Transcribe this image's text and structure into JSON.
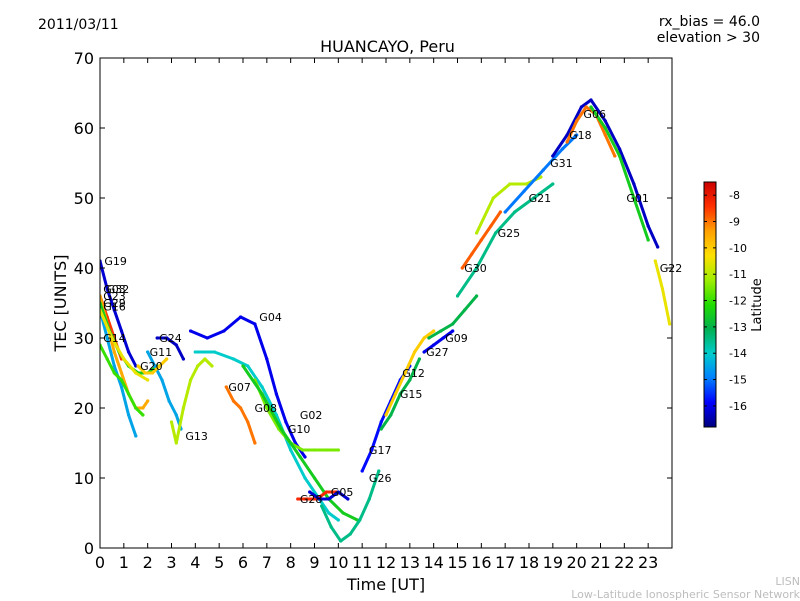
{
  "header": {
    "date": "2011/03/11",
    "bias_line": "rx_bias = 46.0",
    "elevation_line": "elevation > 30",
    "title": "HUANCAYO, Peru"
  },
  "footer": {
    "line1": "LISN",
    "line2": "Low-Latitude Ionospheric Sensor Network"
  },
  "chart_data": {
    "type": "scatter",
    "title": "HUANCAYO, Peru",
    "xlabel": "Time [UT]",
    "ylabel": "TEC [UNITS]",
    "xlim": [
      0,
      24
    ],
    "ylim": [
      0,
      70
    ],
    "xticks": [
      0,
      1,
      2,
      3,
      4,
      5,
      6,
      7,
      8,
      9,
      10,
      11,
      12,
      13,
      14,
      15,
      16,
      17,
      18,
      19,
      20,
      21,
      22,
      23
    ],
    "yticks": [
      0,
      10,
      20,
      30,
      40,
      50,
      60,
      70
    ],
    "colorbar": {
      "label": "Latitude",
      "min": -16.8,
      "max": -7.5,
      "ticks": [
        -8,
        -9,
        -10,
        -11,
        -12,
        -13,
        -14,
        -15,
        -16
      ],
      "colors": [
        "#00007f",
        "#0000ff",
        "#0080ff",
        "#00cccc",
        "#00b050",
        "#22dd00",
        "#a0ee00",
        "#ffe000",
        "#ffa000",
        "#ff3000",
        "#cc0000"
      ]
    },
    "series": [
      {
        "name": "G19",
        "label_at": [
          0.1,
          41
        ],
        "lat": -16.2,
        "x": [
          0,
          0.3,
          0.6,
          0.9,
          1.2,
          1.5
        ],
        "y": [
          41,
          37,
          34,
          31,
          28,
          26
        ]
      },
      {
        "name": "G03",
        "label_at": [
          0.05,
          37
        ],
        "lat": -8.5,
        "x": [
          0,
          0.3,
          0.6,
          0.9
        ],
        "y": [
          36,
          33,
          30,
          27
        ]
      },
      {
        "name": "G32",
        "label_at": [
          0.2,
          37
        ],
        "lat": -9.5,
        "x": [
          0,
          0.3,
          0.6,
          0.9,
          1.2,
          1.5,
          1.8,
          2.0
        ],
        "y": [
          36,
          32,
          28,
          25,
          22,
          20,
          20,
          21
        ]
      },
      {
        "name": "G23",
        "label_at": [
          0.05,
          36
        ],
        "lat": -12.5,
        "x": [
          0,
          0.4,
          0.8,
          1.2,
          1.6,
          2.0,
          2.4
        ],
        "y": [
          35,
          31,
          28,
          26,
          25,
          25,
          26
        ]
      },
      {
        "name": "G29",
        "label_at": [
          0.05,
          35
        ],
        "lat": -14.5,
        "x": [
          0,
          0.3,
          0.6,
          0.9,
          1.2,
          1.5
        ],
        "y": [
          34,
          30,
          26,
          23,
          19,
          16
        ]
      },
      {
        "name": "G16",
        "label_at": [
          0.05,
          34.5
        ],
        "lat": -10.5,
        "x": [
          0,
          0.5,
          1.0,
          1.5,
          2.0
        ],
        "y": [
          34,
          30,
          27,
          25,
          24
        ]
      },
      {
        "name": "G14",
        "label_at": [
          0.05,
          30
        ],
        "lat": -12.0,
        "x": [
          0,
          0.3,
          0.6,
          0.9,
          1.2,
          1.5,
          1.8
        ],
        "y": [
          29,
          27,
          25,
          24,
          22,
          20,
          19
        ]
      },
      {
        "name": "G24",
        "label_at": [
          2.4,
          30
        ],
        "lat": -16.3,
        "x": [
          2.4,
          2.8,
          3.2,
          3.5
        ],
        "y": [
          30,
          30,
          29,
          27
        ]
      },
      {
        "name": "G11",
        "label_at": [
          2.0,
          28
        ],
        "lat": -14.5,
        "x": [
          2.0,
          2.3,
          2.6,
          2.9,
          3.2,
          3.4
        ],
        "y": [
          28,
          26,
          24,
          21,
          19,
          17
        ]
      },
      {
        "name": "G13",
        "label_at": [
          3.5,
          16
        ],
        "lat": -11.0,
        "x": [
          3.0,
          3.2,
          3.5,
          3.8,
          4.1,
          4.4,
          4.7
        ],
        "y": [
          18,
          15,
          20,
          24,
          26,
          27,
          26
        ]
      },
      {
        "name": "G20",
        "label_at": [
          1.6,
          26
        ],
        "lat": -10.0,
        "x": [
          1.6,
          1.9,
          2.2,
          2.5,
          2.8
        ],
        "y": [
          26,
          25,
          25,
          26,
          27
        ]
      },
      {
        "name": "G07",
        "label_at": [
          5.3,
          23
        ],
        "lat": -9.0,
        "x": [
          5.3,
          5.6,
          5.9,
          6.2,
          6.5
        ],
        "y": [
          23,
          21,
          20,
          18,
          15
        ]
      },
      {
        "name": "G04",
        "label_at": [
          6.6,
          33
        ],
        "lat": -16.0,
        "x": [
          3.8,
          4.5,
          5.2,
          5.9,
          6.5,
          7.0,
          7.4,
          7.8,
          8.2,
          8.6
        ],
        "y": [
          31,
          30,
          31,
          33,
          32,
          27,
          22,
          18,
          15,
          13
        ]
      },
      {
        "name": "G08",
        "label_at": [
          6.4,
          20
        ],
        "lat": -14.0,
        "x": [
          4.0,
          4.8,
          5.6,
          6.2,
          6.8,
          7.4,
          8.0,
          8.6,
          9.2,
          9.6,
          10.0
        ],
        "y": [
          28,
          28,
          27,
          26,
          23,
          19,
          14,
          10,
          7,
          5,
          4
        ]
      },
      {
        "name": "G02",
        "label_at": [
          8.3,
          19
        ],
        "lat": -11.5,
        "x": [
          6.5,
          7.0,
          7.5,
          8.0,
          8.5,
          9.0,
          9.5,
          10.0
        ],
        "y": [
          24,
          20,
          17,
          15,
          14,
          14,
          14,
          14
        ]
      },
      {
        "name": "G10",
        "label_at": [
          7.8,
          17
        ],
        "lat": -12.5,
        "x": [
          6.0,
          6.8,
          7.6,
          8.4,
          9.0,
          9.6,
          10.2,
          10.8
        ],
        "y": [
          26,
          22,
          17,
          13,
          10,
          7,
          5,
          4
        ]
      },
      {
        "name": "G28",
        "label_at": [
          8.3,
          7
        ],
        "lat": -8.3,
        "x": [
          8.3,
          8.7,
          9.1,
          9.5,
          9.9
        ],
        "y": [
          7,
          7,
          7,
          8,
          8
        ]
      },
      {
        "name": "G05",
        "label_at": [
          9.6,
          8
        ],
        "lat": -16.2,
        "x": [
          8.8,
          9.2,
          9.6,
          10.0,
          10.4
        ],
        "y": [
          8,
          7,
          7,
          8,
          7
        ]
      },
      {
        "name": "G26",
        "label_at": [
          11.2,
          10
        ],
        "lat": -13.5,
        "x": [
          9.3,
          9.7,
          10.1,
          10.5,
          10.9,
          11.3,
          11.7
        ],
        "y": [
          6,
          3,
          1,
          2,
          4,
          7,
          11
        ]
      },
      {
        "name": "G17",
        "label_at": [
          11.2,
          14
        ],
        "lat": -15.8,
        "x": [
          11.0,
          11.4,
          11.8,
          12.2,
          12.6,
          13.0
        ],
        "y": [
          11,
          14,
          18,
          21,
          24,
          26
        ]
      },
      {
        "name": "G12",
        "label_at": [
          12.6,
          25
        ],
        "lat": -10.0,
        "x": [
          12.0,
          12.4,
          12.8,
          13.2,
          13.6,
          14.0
        ],
        "y": [
          19,
          22,
          25,
          28,
          30,
          31
        ]
      },
      {
        "name": "G15",
        "label_at": [
          12.5,
          22
        ],
        "lat": -13.0,
        "x": [
          11.8,
          12.2,
          12.6,
          13.0,
          13.4
        ],
        "y": [
          17,
          19,
          22,
          24,
          27
        ]
      },
      {
        "name": "G27",
        "label_at": [
          13.6,
          28
        ],
        "lat": -16.0,
        "x": [
          13.6,
          14.0,
          14.4,
          14.8
        ],
        "y": [
          28,
          29,
          30,
          31
        ]
      },
      {
        "name": "G09",
        "label_at": [
          14.4,
          30
        ],
        "lat": -13.0,
        "x": [
          13.8,
          14.3,
          14.8,
          15.3,
          15.8
        ],
        "y": [
          30,
          31,
          32,
          34,
          36
        ]
      },
      {
        "name": "G30",
        "label_at": [
          15.2,
          40
        ],
        "lat": -8.8,
        "x": [
          15.2,
          15.6,
          16.0,
          16.4,
          16.8
        ],
        "y": [
          40,
          42,
          44,
          46,
          48
        ]
      },
      {
        "name": "G25",
        "label_at": [
          16.6,
          45
        ],
        "lat": -13.5,
        "x": [
          15.0,
          15.8,
          16.6,
          17.4,
          18.2,
          19.0
        ],
        "y": [
          36,
          40,
          45,
          48,
          50,
          52
        ]
      },
      {
        "name": "G21",
        "label_at": [
          17.9,
          50
        ],
        "lat": -11.0,
        "x": [
          15.8,
          16.5,
          17.2,
          17.9,
          18.5
        ],
        "y": [
          45,
          50,
          52,
          52,
          53
        ]
      },
      {
        "name": "G31",
        "label_at": [
          18.8,
          55
        ],
        "lat": -15.0,
        "x": [
          17.0,
          17.8,
          18.6,
          19.4,
          20.0
        ],
        "y": [
          48,
          51,
          54,
          57,
          59
        ]
      },
      {
        "name": "G18",
        "label_at": [
          19.6,
          59
        ],
        "lat": -16.3,
        "x": [
          19.0,
          19.6,
          20.2,
          20.6,
          21.2,
          21.8,
          22.4,
          23.0,
          23.4
        ],
        "y": [
          56,
          59,
          63,
          64,
          61,
          57,
          52,
          46,
          43
        ]
      },
      {
        "name": "G06",
        "label_at": [
          20.2,
          62
        ],
        "lat": -9.0,
        "x": [
          19.6,
          20.0,
          20.4,
          20.8,
          21.2,
          21.6
        ],
        "y": [
          58,
          61,
          63,
          62,
          59,
          56
        ]
      },
      {
        "name": "G01",
        "label_at": [
          22.0,
          50
        ],
        "lat": -12.5,
        "x": [
          20.6,
          21.2,
          21.8,
          22.4,
          23.0
        ],
        "y": [
          63,
          60,
          56,
          50,
          44
        ]
      },
      {
        "name": "G22",
        "label_at": [
          23.4,
          40
        ],
        "lat": -10.5,
        "x": [
          23.3,
          23.6,
          23.9
        ],
        "y": [
          41,
          37,
          32
        ]
      }
    ]
  }
}
